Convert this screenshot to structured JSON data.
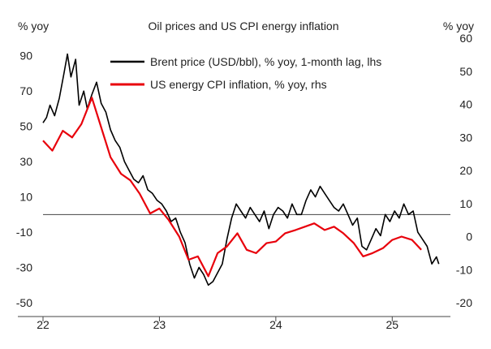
{
  "chart_data": {
    "type": "line",
    "title": "Oil prices and US CPI energy inflation",
    "left_unit": "% yoy",
    "right_unit": "% yoy",
    "x_ticks": [
      "22",
      "23",
      "24",
      "25"
    ],
    "x_range": [
      2022.0,
      2025.5
    ],
    "ylim_left": [
      -50,
      100
    ],
    "ylim_right": [
      -20,
      60
    ],
    "y_ticks_left": [
      90,
      70,
      50,
      30,
      10,
      -10,
      -30,
      -50
    ],
    "y_ticks_right": [
      60,
      50,
      40,
      30,
      20,
      10,
      0,
      -10,
      -20
    ],
    "zero_line_left": 0,
    "legend": {
      "placement": "top-center"
    },
    "series": [
      {
        "name": "Brent price (USD/bbl), % yoy, 1-month lag, lhs",
        "axis": "left",
        "color": "#000000",
        "x": [
          2022.0,
          2022.03,
          2022.06,
          2022.1,
          2022.14,
          2022.18,
          2022.21,
          2022.24,
          2022.28,
          2022.31,
          2022.35,
          2022.38,
          2022.42,
          2022.46,
          2022.5,
          2022.54,
          2022.58,
          2022.62,
          2022.66,
          2022.7,
          2022.74,
          2022.78,
          2022.82,
          2022.86,
          2022.9,
          2022.94,
          2022.98,
          2023.02,
          2023.06,
          2023.1,
          2023.14,
          2023.18,
          2023.22,
          2023.26,
          2023.3,
          2023.34,
          2023.38,
          2023.42,
          2023.46,
          2023.5,
          2023.54,
          2023.58,
          2023.62,
          2023.66,
          2023.7,
          2023.74,
          2023.78,
          2023.82,
          2023.86,
          2023.9,
          2023.94,
          2023.98,
          2024.02,
          2024.06,
          2024.1,
          2024.14,
          2024.18,
          2024.22,
          2024.26,
          2024.3,
          2024.34,
          2024.38,
          2024.42,
          2024.46,
          2024.5,
          2024.54,
          2024.58,
          2024.62,
          2024.66,
          2024.7,
          2024.74,
          2024.78,
          2024.82,
          2024.86,
          2024.9,
          2024.94,
          2024.98,
          2025.02,
          2025.06,
          2025.1,
          2025.14,
          2025.18,
          2025.22,
          2025.26,
          2025.3,
          2025.34,
          2025.38,
          2025.4
        ],
        "y": [
          52,
          55,
          62,
          56,
          66,
          80,
          91,
          78,
          88,
          62,
          70,
          60,
          68,
          75,
          63,
          58,
          48,
          42,
          38,
          30,
          25,
          20,
          18,
          22,
          14,
          12,
          8,
          6,
          2,
          -4,
          -2,
          -10,
          -16,
          -28,
          -36,
          -30,
          -34,
          -40,
          -38,
          -33,
          -28,
          -14,
          -2,
          6,
          2,
          -2,
          4,
          0,
          -4,
          2,
          -8,
          0,
          4,
          2,
          -2,
          6,
          0,
          0,
          8,
          14,
          10,
          16,
          12,
          8,
          4,
          2,
          6,
          0,
          -6,
          -2,
          -18,
          -20,
          -14,
          -8,
          -12,
          0,
          -4,
          2,
          -2,
          6,
          0,
          2,
          -10,
          -14,
          -18,
          -28,
          -24,
          -28
        ]
      },
      {
        "name": "US energy CPI inflation, % yoy, rhs",
        "axis": "right",
        "color": "#e8000b",
        "x": [
          2022.0,
          2022.08,
          2022.17,
          2022.25,
          2022.33,
          2022.42,
          2022.5,
          2022.58,
          2022.67,
          2022.75,
          2022.83,
          2022.92,
          2023.0,
          2023.08,
          2023.17,
          2023.25,
          2023.33,
          2023.42,
          2023.5,
          2023.58,
          2023.67,
          2023.75,
          2023.83,
          2023.92,
          2024.0,
          2024.08,
          2024.17,
          2024.25,
          2024.33,
          2024.42,
          2024.5,
          2024.58,
          2024.67,
          2024.75,
          2024.83,
          2024.92,
          2025.0,
          2025.08,
          2025.17,
          2025.25
        ],
        "y": [
          29,
          26,
          32,
          30,
          34,
          42,
          33,
          24,
          19,
          17,
          13,
          7,
          8.5,
          5,
          0,
          -7,
          -6,
          -12,
          -5,
          -3,
          1,
          -4,
          -5,
          -2,
          -1.5,
          1,
          2,
          3,
          4,
          2,
          3,
          1,
          -2,
          -6,
          -5,
          -3.5,
          -1,
          0,
          -1,
          -4
        ]
      }
    ]
  }
}
